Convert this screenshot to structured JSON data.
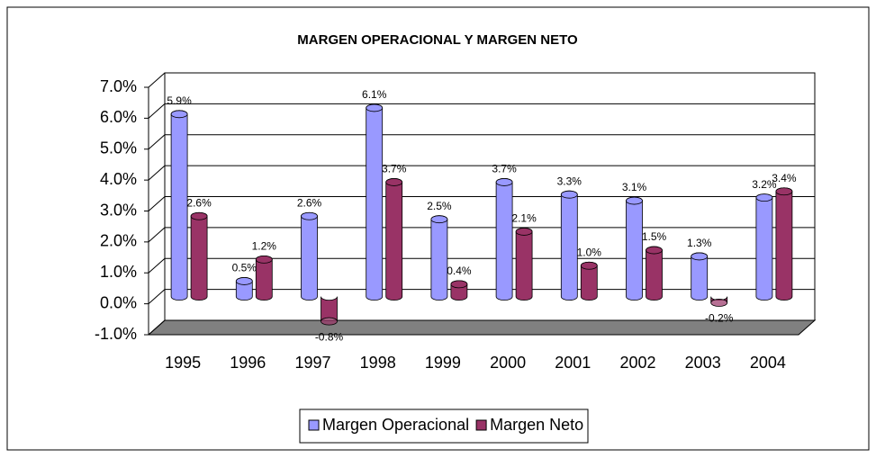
{
  "chart_data": {
    "type": "bar3d",
    "title": "MARGEN OPERACIONAL Y MARGEN NETO",
    "categories": [
      "1995",
      "1996",
      "1997",
      "1998",
      "1999",
      "2000",
      "2001",
      "2002",
      "2003",
      "2004"
    ],
    "series": [
      {
        "name": "Margen Operacional",
        "color": "#9999ff",
        "values": [
          5.9,
          0.5,
          2.6,
          6.1,
          2.5,
          3.7,
          3.3,
          3.1,
          1.3,
          3.2
        ],
        "value_labels": [
          "5.9%",
          "0.5%",
          "2.6%",
          "6.1%",
          "2.5%",
          "3.7%",
          "3.3%",
          "3.1%",
          "1.3%",
          "3.2%"
        ]
      },
      {
        "name": "Margen Neto",
        "color": "#993366",
        "values": [
          2.6,
          1.2,
          -0.8,
          3.7,
          0.4,
          2.1,
          1.0,
          1.5,
          -0.2,
          3.4
        ],
        "value_labels": [
          "2.6%",
          "1.2%",
          "-0.8%",
          "3.7%",
          "0.4%",
          "2.1%",
          "1.0%",
          "1.5%",
          "-0.2%",
          "3.4%"
        ]
      }
    ],
    "ylim": [
      -1,
      7
    ],
    "yticks": [
      {
        "value": -1,
        "label": "-1.0%"
      },
      {
        "value": 0,
        "label": "0.0%"
      },
      {
        "value": 1,
        "label": "1.0%"
      },
      {
        "value": 2,
        "label": "2.0%"
      },
      {
        "value": 3,
        "label": "3.0%"
      },
      {
        "value": 4,
        "label": "4.0%"
      },
      {
        "value": 5,
        "label": "5.0%"
      },
      {
        "value": 6,
        "label": "6.0%"
      },
      {
        "value": 7,
        "label": "7.0%"
      }
    ],
    "grid": true,
    "legend": "bottom"
  }
}
